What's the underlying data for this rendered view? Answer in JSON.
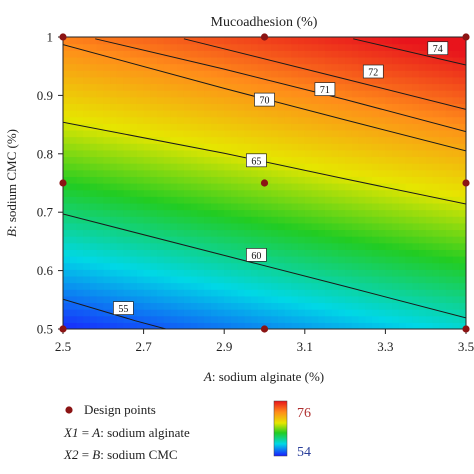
{
  "chart_data": {
    "type": "contour",
    "title": "Mucoadhesion (%)",
    "xlabel_italic": "A",
    "xlabel_rest": ": sodium alginate (%)",
    "ylabel_italic": "B",
    "ylabel_rest": ": sodium CMC (%)",
    "xlim": [
      2.5,
      3.5
    ],
    "ylim": [
      0.5,
      1.0
    ],
    "x_ticks": [
      "2.5",
      "2.7",
      "2.9",
      "3.1",
      "3.3",
      "3.5"
    ],
    "y_ticks": [
      "0.5",
      "0.6",
      "0.7",
      "0.8",
      "0.9",
      "1"
    ],
    "response_range": [
      54,
      76
    ],
    "contours": [
      {
        "level": 55,
        "label": "55",
        "points": [
          [
            2.5,
            0.551
          ],
          [
            2.68,
            0.514
          ],
          [
            2.82,
            0.488
          ]
        ]
      },
      {
        "level": 60,
        "label": "60",
        "points": [
          [
            2.5,
            0.697
          ],
          [
            2.9,
            0.626
          ],
          [
            3.2,
            0.573
          ],
          [
            3.5,
            0.519
          ]
        ]
      },
      {
        "level": 65,
        "label": "65",
        "points": [
          [
            2.5,
            0.854
          ],
          [
            2.9,
            0.801
          ],
          [
            3.2,
            0.757
          ],
          [
            3.5,
            0.714
          ]
        ]
      },
      {
        "level": 70,
        "label": "70",
        "points": [
          [
            2.5,
            0.987
          ],
          [
            2.9,
            0.912
          ],
          [
            3.2,
            0.858
          ],
          [
            3.5,
            0.805
          ]
        ]
      },
      {
        "level": 71,
        "label": "71",
        "points": [
          [
            2.58,
            0.997
          ],
          [
            2.9,
            0.945
          ],
          [
            3.2,
            0.893
          ],
          [
            3.5,
            0.838
          ]
        ]
      },
      {
        "level": 72,
        "label": "72",
        "points": [
          [
            2.8,
            0.997
          ],
          [
            3.2,
            0.928
          ],
          [
            3.5,
            0.876
          ]
        ]
      },
      {
        "level": 74,
        "label": "74",
        "points": [
          [
            3.22,
            0.997
          ],
          [
            3.5,
            0.952
          ]
        ]
      }
    ],
    "contour_label_positions": [
      {
        "label": "55",
        "x": 2.65,
        "y": 0.535
      },
      {
        "label": "60",
        "x": 2.98,
        "y": 0.626
      },
      {
        "label": "65",
        "x": 2.98,
        "y": 0.788
      },
      {
        "label": "70",
        "x": 3.0,
        "y": 0.892
      },
      {
        "label": "71",
        "x": 3.15,
        "y": 0.91
      },
      {
        "label": "72",
        "x": 3.27,
        "y": 0.94
      },
      {
        "label": "74",
        "x": 3.43,
        "y": 0.98
      }
    ],
    "design_points": [
      [
        2.5,
        1.0
      ],
      [
        3.0,
        1.0
      ],
      [
        3.5,
        1.0
      ],
      [
        2.5,
        0.75
      ],
      [
        3.0,
        0.75
      ],
      [
        3.5,
        0.75
      ],
      [
        2.5,
        0.5
      ],
      [
        3.0,
        0.5
      ],
      [
        3.5,
        0.5
      ]
    ],
    "grid": false
  },
  "legend": {
    "design_points": "Design points",
    "x1_italic_a": "X1",
    "x1_mid": " = ",
    "x1_italic_b": "A",
    "x1_rest": ": sodium alginate",
    "x2_italic_a": "X2",
    "x2_mid": " = ",
    "x2_italic_b": "B",
    "x2_rest": ": sodium CMC"
  },
  "colorbar": {
    "max_label": "76",
    "min_label": "54"
  },
  "colors": {
    "design_point": "#8b1414",
    "contour_line": "#1a1a1a"
  }
}
